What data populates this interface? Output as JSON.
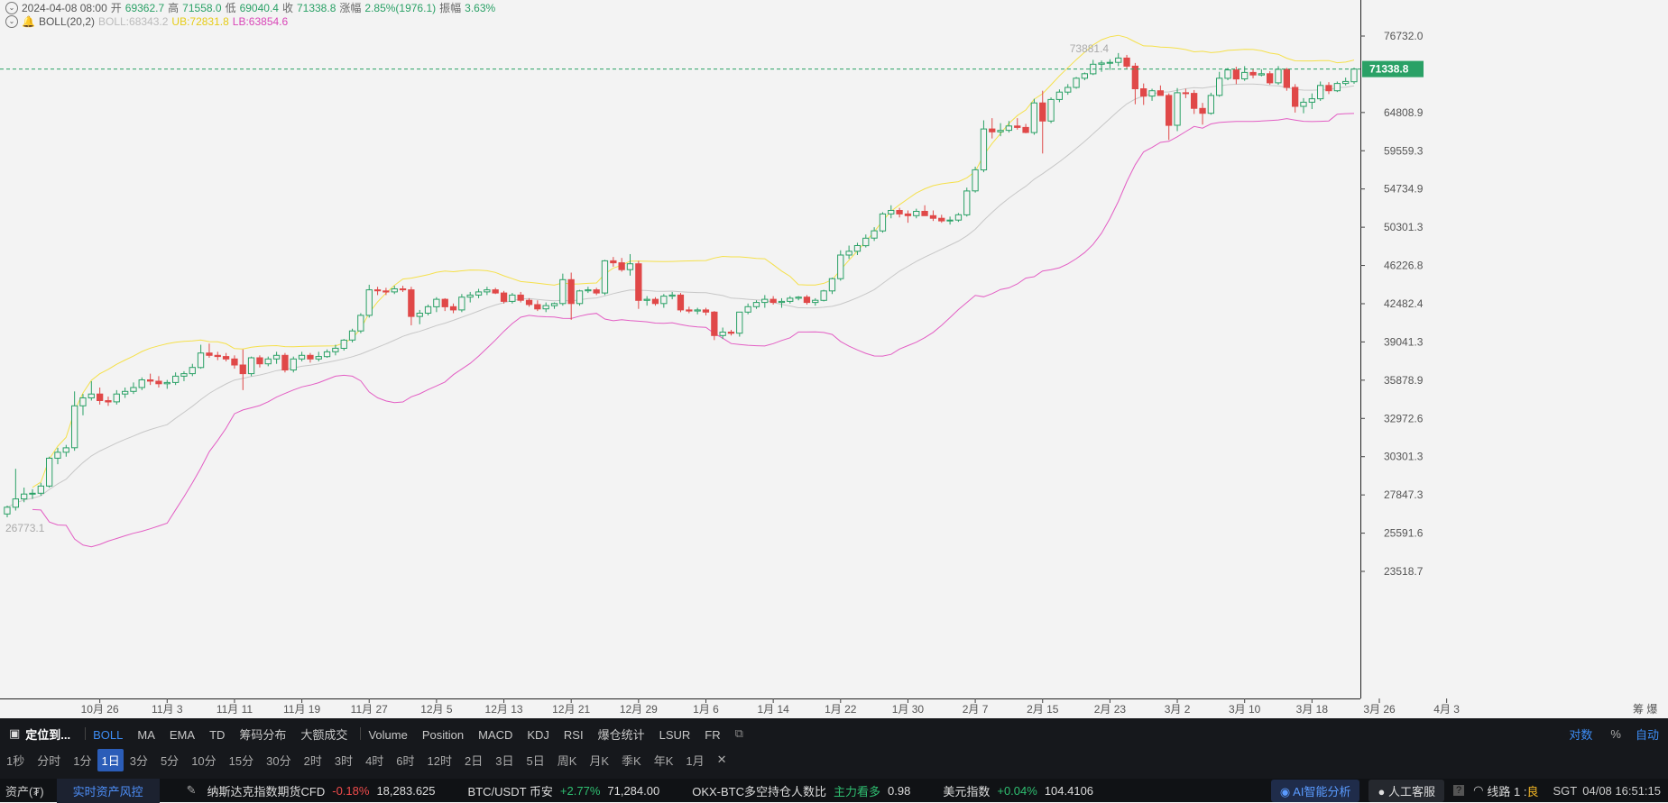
{
  "header": {
    "date": "2024-04-08 08:00",
    "open_label": "开",
    "open": "69362.7",
    "high_label": "高",
    "high": "71558.0",
    "low_label": "低",
    "low": "69040.4",
    "close_label": "收",
    "close": "71338.8",
    "change_label": "涨幅",
    "change": "2.85%(1976.1)",
    "amp_label": "振幅",
    "amp": "3.63%"
  },
  "boll_legend": {
    "name": "BOLL(20,2)",
    "boll": "BOLL:68343.2",
    "ub": "UB:72831.8",
    "lb": "LB:63854.6"
  },
  "colors": {
    "up": "#2aa166",
    "down": "#e04848",
    "ub": "#f5e04a",
    "mid": "#c7c7c7",
    "lb": "#e35ec4",
    "last_price_line": "#2aa166",
    "axis_text": "#555555"
  },
  "chart_data": {
    "type": "candlestick",
    "indicator": "BOLL(20,2)",
    "y_ticks": [
      "76732.0",
      "64808.9",
      "59559.3",
      "54734.9",
      "50301.3",
      "46226.8",
      "42482.4",
      "39041.3",
      "35878.9",
      "32972.6",
      "30301.3",
      "27847.3",
      "25591.6",
      "23518.7"
    ],
    "x_ticks": [
      "10月 26",
      "11月 3",
      "11月 11",
      "11月 19",
      "11月 27",
      "12月 5",
      "12月 13",
      "12月 21",
      "12月 29",
      "1月 6",
      "1月 14",
      "1月 22",
      "1月 30",
      "2月 7",
      "2月 15",
      "2月 23",
      "3月 2",
      "3月 10",
      "3月 18",
      "3月 26",
      "4月 3"
    ],
    "last_price": "71338.8",
    "max_label": "73881.4",
    "min_label": "26773.1",
    "candles": [
      [
        26700,
        27200,
        26500,
        27100
      ],
      [
        27100,
        29500,
        26900,
        27600
      ],
      [
        27600,
        28300,
        27400,
        27900
      ],
      [
        27900,
        28200,
        27600,
        27950
      ],
      [
        27950,
        28600,
        27800,
        28400
      ],
      [
        28400,
        30300,
        28300,
        30200
      ],
      [
        30200,
        30900,
        29800,
        30600
      ],
      [
        30600,
        31100,
        30300,
        30900
      ],
      [
        30900,
        35000,
        30700,
        33900
      ],
      [
        33900,
        34800,
        33200,
        34500
      ],
      [
        34500,
        35800,
        34300,
        34800
      ],
      [
        34800,
        35300,
        34000,
        34300
      ],
      [
        34300,
        34600,
        33900,
        34200
      ],
      [
        34200,
        35100,
        34000,
        34800
      ],
      [
        34800,
        35300,
        34500,
        35000
      ],
      [
        35000,
        35700,
        34800,
        35300
      ],
      [
        35300,
        36100,
        35100,
        35900
      ],
      [
        35900,
        36400,
        35500,
        35800
      ],
      [
        35800,
        36200,
        35300,
        35600
      ],
      [
        35600,
        35900,
        35200,
        35700
      ],
      [
        35700,
        36500,
        35500,
        36200
      ],
      [
        36200,
        36600,
        35800,
        36400
      ],
      [
        36400,
        37200,
        36200,
        36900
      ],
      [
        36900,
        38800,
        36800,
        38100
      ],
      [
        38100,
        38900,
        37700,
        37900
      ],
      [
        37900,
        38200,
        37500,
        37800
      ],
      [
        37800,
        38100,
        37400,
        37600
      ],
      [
        37600,
        37900,
        36800,
        37100
      ],
      [
        37100,
        38400,
        35100,
        36400
      ],
      [
        36400,
        37800,
        36200,
        37700
      ],
      [
        37700,
        37900,
        36900,
        37200
      ],
      [
        37200,
        37800,
        37000,
        37600
      ],
      [
        37600,
        38200,
        37200,
        37900
      ],
      [
        37900,
        38100,
        36500,
        36700
      ],
      [
        36700,
        37800,
        36500,
        37600
      ],
      [
        37600,
        38200,
        37400,
        37900
      ],
      [
        37900,
        38100,
        37300,
        37600
      ],
      [
        37600,
        38200,
        37400,
        37800
      ],
      [
        37800,
        38400,
        37700,
        38200
      ],
      [
        38200,
        38800,
        37900,
        38500
      ],
      [
        38500,
        39300,
        38300,
        39200
      ],
      [
        39200,
        40200,
        39000,
        40000
      ],
      [
        40000,
        41600,
        39800,
        41400
      ],
      [
        41400,
        44300,
        41200,
        43800
      ],
      [
        43800,
        44100,
        43300,
        43700
      ],
      [
        43700,
        44000,
        43300,
        43600
      ],
      [
        43600,
        44200,
        43400,
        43900
      ],
      [
        43900,
        44200,
        43600,
        43800
      ],
      [
        43800,
        44100,
        40500,
        41300
      ],
      [
        41300,
        41900,
        40600,
        41600
      ],
      [
        41600,
        42400,
        41400,
        42200
      ],
      [
        42200,
        43100,
        41700,
        42900
      ],
      [
        42900,
        43000,
        41800,
        42200
      ],
      [
        42200,
        42500,
        41600,
        41900
      ],
      [
        41900,
        43400,
        41700,
        43100
      ],
      [
        43100,
        43600,
        42600,
        43300
      ],
      [
        43300,
        43900,
        43000,
        43600
      ],
      [
        43600,
        44100,
        43300,
        43800
      ],
      [
        43800,
        44000,
        43400,
        43500
      ],
      [
        43500,
        43700,
        42500,
        42700
      ],
      [
        42700,
        43500,
        42500,
        43300
      ],
      [
        43300,
        43600,
        42600,
        42800
      ],
      [
        42800,
        43000,
        42200,
        42400
      ],
      [
        42400,
        42800,
        41800,
        42000
      ],
      [
        42000,
        42600,
        41700,
        42300
      ],
      [
        42300,
        42600,
        42000,
        42500
      ],
      [
        42500,
        45400,
        42300,
        44800
      ],
      [
        44800,
        45500,
        41000,
        42500
      ],
      [
        42500,
        43800,
        42300,
        43700
      ],
      [
        43700,
        44100,
        43500,
        43800
      ],
      [
        43800,
        44000,
        43300,
        43500
      ],
      [
        43500,
        46800,
        43300,
        46700
      ],
      [
        46700,
        47100,
        46100,
        46500
      ],
      [
        46500,
        47000,
        45600,
        45800
      ],
      [
        45800,
        47400,
        45200,
        46400
      ],
      [
        46400,
        46700,
        42000,
        42800
      ],
      [
        42800,
        43200,
        42300,
        42900
      ],
      [
        42900,
        43100,
        42300,
        42500
      ],
      [
        42500,
        43400,
        42100,
        43200
      ],
      [
        43200,
        43600,
        42900,
        43300
      ],
      [
        43300,
        43500,
        41700,
        41900
      ],
      [
        41900,
        42200,
        41600,
        41800
      ],
      [
        41800,
        42100,
        41500,
        41900
      ],
      [
        41900,
        42100,
        41400,
        41700
      ],
      [
        41700,
        41800,
        39200,
        39600
      ],
      [
        39600,
        40300,
        39300,
        39900
      ],
      [
        39900,
        40100,
        39600,
        39800
      ],
      [
        39800,
        41700,
        39500,
        41700
      ],
      [
        41700,
        42500,
        41500,
        42200
      ],
      [
        42200,
        42800,
        42000,
        42600
      ],
      [
        42600,
        43300,
        42100,
        42900
      ],
      [
        42900,
        43200,
        42400,
        42600
      ],
      [
        42600,
        43000,
        42100,
        42700
      ],
      [
        42700,
        43200,
        42500,
        43000
      ],
      [
        43000,
        43200,
        42800,
        43100
      ],
      [
        43100,
        43300,
        42400,
        42600
      ],
      [
        42600,
        43000,
        42300,
        42800
      ],
      [
        42800,
        43800,
        42700,
        43700
      ],
      [
        43700,
        45000,
        43400,
        44900
      ],
      [
        44900,
        47800,
        44700,
        47300
      ],
      [
        47300,
        48300,
        46900,
        47700
      ],
      [
        47700,
        48600,
        47300,
        48300
      ],
      [
        48300,
        49500,
        48100,
        49100
      ],
      [
        49100,
        50300,
        48800,
        49900
      ],
      [
        49900,
        52000,
        49700,
        51800
      ],
      [
        51800,
        52800,
        51300,
        52200
      ],
      [
        52200,
        52500,
        51400,
        51800
      ],
      [
        51800,
        52200,
        50800,
        51600
      ],
      [
        51600,
        52400,
        51300,
        52100
      ],
      [
        52100,
        52800,
        51800,
        51600
      ],
      [
        51600,
        52200,
        51000,
        51300
      ],
      [
        51300,
        51700,
        50800,
        51000
      ],
      [
        51000,
        51500,
        50600,
        51100
      ],
      [
        51100,
        51900,
        50900,
        51700
      ],
      [
        51700,
        54900,
        51500,
        54500
      ],
      [
        54500,
        57500,
        54300,
        57100
      ],
      [
        57100,
        63700,
        56800,
        62500
      ],
      [
        62500,
        64000,
        61200,
        62100
      ],
      [
        62100,
        63300,
        61500,
        62300
      ],
      [
        62300,
        63600,
        62000,
        62900
      ],
      [
        62900,
        64000,
        62400,
        62700
      ],
      [
        62700,
        63200,
        61900,
        62000
      ],
      [
        62000,
        66800,
        61700,
        66200
      ],
      [
        66200,
        68000,
        59200,
        63600
      ],
      [
        63600,
        67000,
        63300,
        66700
      ],
      [
        66700,
        68200,
        66300,
        67800
      ],
      [
        67800,
        69000,
        67400,
        68500
      ],
      [
        68500,
        70100,
        68300,
        69900
      ],
      [
        69900,
        70800,
        69600,
        70600
      ],
      [
        70600,
        72800,
        70400,
        72100
      ],
      [
        72100,
        72700,
        70900,
        72300
      ],
      [
        72300,
        72900,
        71200,
        72400
      ],
      [
        72400,
        73900,
        71800,
        73100
      ],
      [
        73100,
        73600,
        71400,
        71800
      ],
      [
        71800,
        72300,
        66000,
        68300
      ],
      [
        68300,
        69100,
        65900,
        67200
      ],
      [
        67200,
        68300,
        66500,
        68000
      ],
      [
        68000,
        68800,
        67600,
        67300
      ],
      [
        67300,
        67600,
        61000,
        63000
      ],
      [
        63000,
        68400,
        62200,
        67700
      ],
      [
        67700,
        68300,
        66900,
        67600
      ],
      [
        67600,
        68100,
        64600,
        65400
      ],
      [
        65400,
        66200,
        63100,
        64700
      ],
      [
        64700,
        67700,
        64500,
        67300
      ],
      [
        67300,
        70900,
        67100,
        69900
      ],
      [
        69900,
        71500,
        69600,
        71200
      ],
      [
        71200,
        71700,
        69000,
        69800
      ],
      [
        69800,
        71800,
        69500,
        70800
      ],
      [
        70800,
        71400,
        69900,
        70400
      ],
      [
        70400,
        71300,
        70200,
        70600
      ],
      [
        70600,
        71000,
        68900,
        69200
      ],
      [
        69200,
        71800,
        68900,
        71300
      ],
      [
        71300,
        71500,
        68000,
        68500
      ],
      [
        68500,
        69000,
        64800,
        65700
      ],
      [
        65700,
        66900,
        64700,
        66300
      ],
      [
        66300,
        67600,
        65300,
        66800
      ],
      [
        66800,
        69400,
        66500,
        68800
      ],
      [
        68800,
        69300,
        67500,
        68000
      ],
      [
        68000,
        69400,
        67800,
        69100
      ],
      [
        69100,
        70000,
        68800,
        69400
      ],
      [
        69362.7,
        71558.0,
        69040.4,
        71338.8
      ]
    ]
  },
  "toolbar": {
    "locate": "定位到...",
    "indicators": [
      "BOLL",
      "MA",
      "EMA",
      "TD",
      "筹码分布",
      "大额成交"
    ],
    "sub_indicators": [
      "Volume",
      "Position",
      "MACD",
      "KDJ",
      "RSI",
      "爆仓统计",
      "LSUR",
      "FR"
    ],
    "timeframes": [
      "1秒",
      "分时",
      "1分",
      "1日",
      "3分",
      "5分",
      "10分",
      "15分",
      "30分",
      "2时",
      "3时",
      "4时",
      "6时",
      "12时",
      "2日",
      "3日",
      "5日",
      "周K",
      "月K",
      "季K",
      "年K",
      "1月"
    ],
    "right_log": "对数",
    "right_pct": "%",
    "right_auto": "自动",
    "right_top": "筹 爆"
  },
  "status": {
    "assets": "资产(₮)",
    "risk": "实时资产风控",
    "t1_name": "纳斯达克指数期货CFD",
    "t1_chg": "-0.18%",
    "t1_val": "18,283.625",
    "t2_name": "BTC/USDT 币安",
    "t2_chg": "+2.77%",
    "t2_val": "71,284.00",
    "t3_name": "OKX-BTC多空持仓人数比",
    "t3_tag": "主力看多",
    "t3_val": "0.98",
    "t4_name": "美元指数",
    "t4_chg": "+0.04%",
    "t4_val": "104.4106",
    "ai": "AI智能分析",
    "service": "人工客服",
    "line": "线路 1 : ",
    "line_q": "良",
    "tz": "SGT",
    "time": "04/08 16:51:15"
  }
}
